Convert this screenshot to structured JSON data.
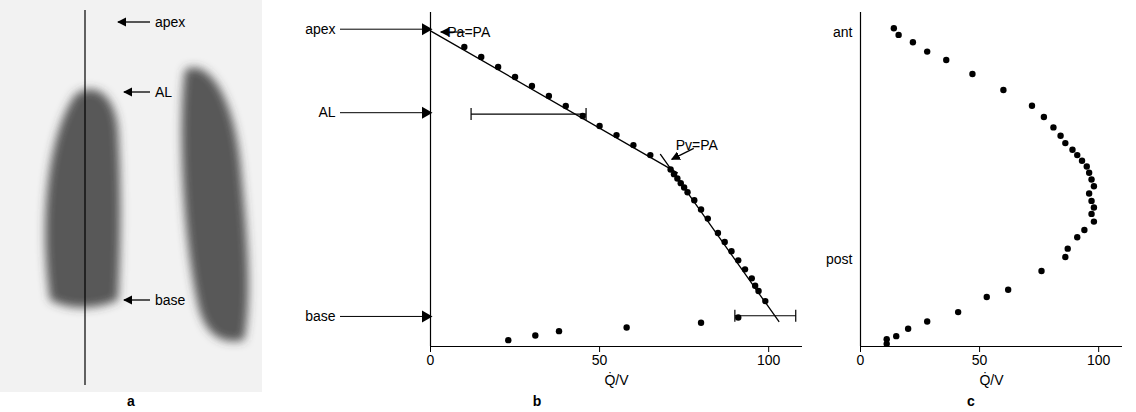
{
  "chart_data": [
    {
      "type": "image",
      "panel": "a",
      "labels": [
        "apex",
        "AL",
        "base"
      ]
    },
    {
      "type": "scatter",
      "panel": "b",
      "x_label": "Q̇/V",
      "xlim": [
        0,
        110
      ],
      "xticks": [
        0,
        50,
        100
      ],
      "ylim": [
        0,
        100
      ],
      "yticks": [
        {
          "value": 95,
          "label": "apex"
        },
        {
          "value": 70,
          "label": "AL"
        },
        {
          "value": 9,
          "label": "base"
        }
      ],
      "series": [
        {
          "type": "scatter",
          "color": "#000000",
          "marker": "circle",
          "x": [
            10,
            15,
            20,
            25,
            30,
            35,
            40,
            45,
            50,
            55,
            60,
            65,
            71,
            72,
            73,
            74,
            75,
            76,
            78,
            80,
            82,
            85,
            87,
            89,
            91,
            93,
            95,
            96,
            97,
            99,
            23,
            31,
            38,
            58,
            80,
            91
          ],
          "values": [
            89.7,
            86.7,
            83.7,
            80.7,
            78.0,
            75.0,
            72.0,
            69.0,
            66.0,
            63.3,
            60.3,
            57.3,
            53.0,
            51.6,
            50.3,
            48.9,
            47.6,
            46.2,
            43.8,
            41.0,
            38.3,
            34.0,
            31.3,
            28.5,
            25.8,
            23.1,
            20.4,
            18.2,
            16.6,
            13.6,
            1.9,
            3.3,
            4.6,
            5.7,
            7.1,
            8.7
          ]
        },
        {
          "type": "line",
          "color": "#000000",
          "line_style": "solid",
          "x": [
            0,
            73
          ],
          "values": [
            94.5,
            52
          ]
        },
        {
          "type": "line",
          "color": "#000000",
          "line_style": "solid",
          "x": [
            68,
            103
          ],
          "values": [
            57.5,
            7.5
          ]
        }
      ],
      "error_bars": [
        {
          "y": 69.6,
          "xmin": 12,
          "xmax": 46
        },
        {
          "y": 9.2,
          "xmin": 90,
          "xmax": 108
        }
      ],
      "annotations": [
        {
          "text": "Pa=PA",
          "x": 2,
          "y": 94
        },
        {
          "text": "Pv=PA",
          "x": 70,
          "y": 55
        }
      ]
    },
    {
      "type": "scatter",
      "panel": "c",
      "x_label": "Q̇/V",
      "xlim": [
        0,
        110
      ],
      "xticks": [
        0,
        50,
        100
      ],
      "ylim": [
        0,
        100
      ],
      "yticks": [
        {
          "value": 94,
          "label": "ant"
        },
        {
          "value": 26,
          "label": "post"
        }
      ],
      "series": [
        {
          "type": "scatter",
          "color": "#000000",
          "marker": "circle",
          "x": [
            14,
            16,
            22,
            28,
            36,
            47,
            60,
            72,
            77,
            81,
            84,
            86,
            89,
            91,
            93,
            95,
            96,
            97,
            98,
            96,
            97,
            98,
            97,
            98,
            94,
            91,
            87,
            86,
            76,
            62,
            53,
            41,
            28,
            20,
            15,
            11,
            11
          ],
          "values": [
            95.3,
            93.3,
            91.1,
            88.3,
            85.8,
            81.6,
            76.8,
            72.1,
            68.7,
            65.6,
            63.1,
            60.9,
            58.9,
            57.3,
            55.6,
            53.9,
            52.0,
            50.0,
            48.0,
            45.8,
            43.6,
            41.6,
            39.7,
            37.4,
            34.9,
            32.7,
            29.3,
            26.8,
            22.6,
            17.0,
            14.8,
            10.3,
            7.5,
            5.3,
            3.1,
            2.2,
            0.8
          ]
        }
      ]
    }
  ]
}
